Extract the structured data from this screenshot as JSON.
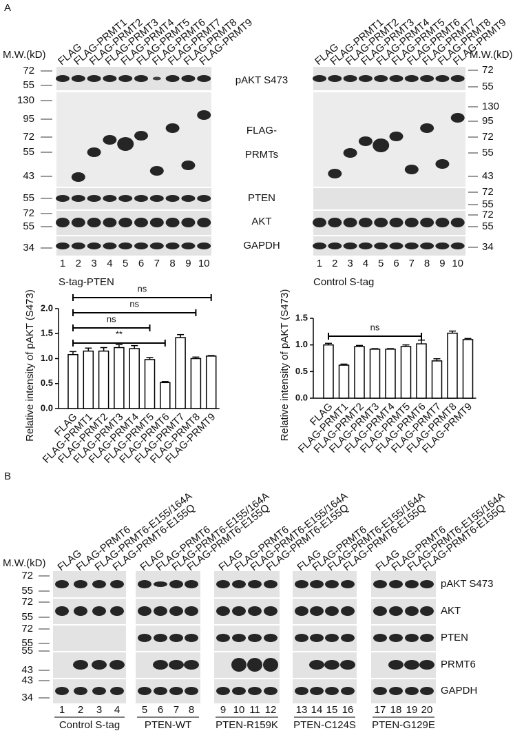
{
  "panel_a": {
    "label": "A",
    "mw_heading": "M.W.(kD)",
    "lanes": [
      "FLAG",
      "FLAG-PRMT1",
      "FLAG-PRMT2",
      "FLAG-PRMT3",
      "FLAG-PRMT4",
      "FLAG-PRMT5",
      "FLAG-PRMT6",
      "FLAG-PRMT7",
      "FLAG-PRMT8",
      "FLAG-PRMT9"
    ],
    "lane_numbers": [
      "1",
      "2",
      "3",
      "4",
      "5",
      "6",
      "7",
      "8",
      "9",
      "10"
    ],
    "row_labels": [
      "pAKT S473",
      "FLAG-",
      "PRMTs",
      "PTEN",
      "AKT",
      "GAPDH"
    ],
    "left_mw": [
      "72",
      "55",
      "130",
      "95",
      "72",
      "55",
      "43",
      "55",
      "72",
      "55",
      "34"
    ],
    "right_mw": [
      "72",
      "55",
      "130",
      "95",
      "72",
      "55",
      "43",
      "72",
      "55",
      "72",
      "55",
      "34"
    ]
  },
  "chart_data": [
    {
      "type": "bar",
      "title": "S-tag-PTEN",
      "y_label": "Relative intensity of pAKT (S473)",
      "categories": [
        "FLAG",
        "FLAG-PRMT1",
        "FLAG-PRMT2",
        "FLAG-PRMT3",
        "FLAG-PRMT4",
        "FLAG-PRMT5",
        "FLAG-PRMT6",
        "FLAG-PRMT7",
        "FLAG-PRMT8",
        "FLAG-PRMT9"
      ],
      "values": [
        1.08,
        1.15,
        1.15,
        1.22,
        1.2,
        0.98,
        0.52,
        1.42,
        1.0,
        1.05
      ],
      "errors": [
        0.06,
        0.06,
        0.07,
        0.06,
        0.06,
        0.04,
        0.02,
        0.06,
        0.03,
        0.01
      ],
      "color": "#ffffff",
      "ylim": [
        0,
        2
      ],
      "yticks": [
        {
          "value": 0,
          "label": "0.0"
        },
        {
          "value": 0.5,
          "label": "0.5"
        },
        {
          "value": 1,
          "label": "1.0"
        },
        {
          "value": 1.5,
          "label": "1.5"
        },
        {
          "value": 2,
          "label": "2.0"
        }
      ],
      "annotations": [
        {
          "text": "ns",
          "from": "FLAG",
          "to": "FLAG-PRMT9"
        },
        {
          "text": "ns",
          "from": "FLAG",
          "to": "FLAG-PRMT8"
        },
        {
          "text": "ns",
          "from": "FLAG",
          "to": "FLAG-PRMT5"
        },
        {
          "text": "**",
          "from": "FLAG",
          "to": "FLAG-PRMT6"
        }
      ]
    },
    {
      "type": "bar",
      "title": "Control S-tag",
      "y_label": "Relative intensity of pAKT (S473)",
      "categories": [
        "FLAG",
        "FLAG-PRMT1",
        "FLAG-PRMT2",
        "FLAG-PRMT3",
        "FLAG-PRMT4",
        "FLAG-PRMT5",
        "FLAG-PRMT6",
        "FLAG-PRMT7",
        "FLAG-PRMT8",
        "FLAG-PRMT9"
      ],
      "values": [
        1.0,
        0.62,
        0.97,
        0.92,
        0.92,
        0.97,
        1.02,
        0.7,
        1.22,
        1.1
      ],
      "errors": [
        0.03,
        0.02,
        0.02,
        0.01,
        0.01,
        0.03,
        0.07,
        0.04,
        0.04,
        0.02
      ],
      "color": "#ffffff",
      "ylim": [
        0,
        1.5
      ],
      "yticks": [
        {
          "value": 0,
          "label": "0.0"
        },
        {
          "value": 0.5,
          "label": "0.5"
        },
        {
          "value": 1,
          "label": "1.0"
        },
        {
          "value": 1.5,
          "label": "1.5"
        }
      ],
      "annotations": [
        {
          "text": "ns",
          "from": "FLAG",
          "to": "FLAG-PRMT6"
        }
      ]
    }
  ],
  "panel_b": {
    "label": "B",
    "mw_heading": "M.W.(kD)",
    "mw": [
      "72",
      "55",
      "72",
      "55",
      "72",
      "55",
      "55",
      "43",
      "43",
      "34"
    ],
    "row_labels": [
      "pAKT S473",
      "AKT",
      "PTEN",
      "PRMT6",
      "GAPDH"
    ],
    "groups": [
      {
        "name": "Control S-tag",
        "lanes": [
          "FLAG",
          "FLAG-PRMT6",
          "FLAG-PRMT6-E155/164A",
          "FLAG-PRMT6-E155Q"
        ],
        "lane_numbers": [
          "1",
          "2",
          "3",
          "4"
        ]
      },
      {
        "name": "PTEN-WT",
        "lanes": [
          "FLAG",
          "FLAG-PRMT6",
          "FLAG-PRMT6-E155/164A",
          "FLAG-PRMT6-E155Q"
        ],
        "lane_numbers": [
          "5",
          "6",
          "7",
          "8"
        ]
      },
      {
        "name": "PTEN-R159K",
        "lanes": [
          "FLAG",
          "FLAG-PRMT6",
          "FLAG-PRMT6-E155/164A",
          "FLAG-PRMT6-E155Q"
        ],
        "lane_numbers": [
          "9",
          "10",
          "11",
          "12"
        ]
      },
      {
        "name": "PTEN-C124S",
        "lanes": [
          "FLAG",
          "FLAG-PRMT6",
          "FLAG-PRMT6-E155/164A",
          "FLAG-PRMT6-E155Q"
        ],
        "lane_numbers": [
          "13",
          "14",
          "15",
          "16"
        ]
      },
      {
        "name": "PTEN-G129E",
        "lanes": [
          "FLAG",
          "FLAG-PRMT6",
          "FLAG-PRMT6-E155/164A",
          "FLAG-PRMT6-E155Q"
        ],
        "lane_numbers": [
          "17",
          "18",
          "19",
          "20"
        ]
      }
    ]
  }
}
